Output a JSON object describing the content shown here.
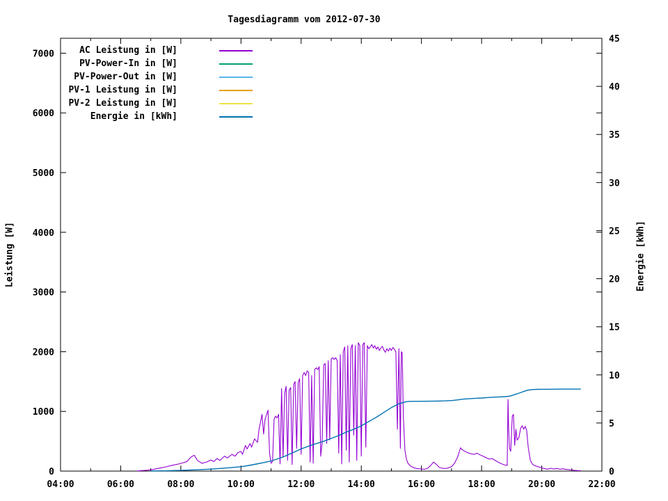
{
  "chart_data": {
    "type": "line",
    "title": "Tagesdiagramm vom 2012-07-30",
    "ylabel_left": "Leistung [W]",
    "ylabel_right": "Energie [kWh]",
    "background": "#ffffff",
    "frame_color": "#000000",
    "text_color": "#000000",
    "legend_position": "top-left-inside",
    "grid": false,
    "xlim": [
      4,
      22
    ],
    "ylim_left": [
      0,
      7250
    ],
    "ylim_right": [
      0,
      45
    ],
    "x_ticks_major": [
      {
        "t": 4,
        "label": "04:00"
      },
      {
        "t": 6,
        "label": "06:00"
      },
      {
        "t": 8,
        "label": "08:00"
      },
      {
        "t": 10,
        "label": "10:00"
      },
      {
        "t": 12,
        "label": "12:00"
      },
      {
        "t": 14,
        "label": "14:00"
      },
      {
        "t": 16,
        "label": "16:00"
      },
      {
        "t": 18,
        "label": "18:00"
      },
      {
        "t": 20,
        "label": "20:00"
      },
      {
        "t": 22,
        "label": "22:00"
      }
    ],
    "x_ticks_minor": [
      5,
      7,
      9,
      11,
      13,
      15,
      17,
      19,
      21
    ],
    "y_left_ticks": [
      0,
      1000,
      2000,
      3000,
      4000,
      5000,
      6000,
      7000
    ],
    "y_right_ticks": [
      0,
      5,
      10,
      15,
      20,
      25,
      30,
      35,
      40,
      45
    ],
    "series": [
      {
        "name": "AC Leistung in [W]",
        "color": "#9400d3",
        "axis": "left",
        "points": [
          [
            6.55,
            2
          ],
          [
            6.7,
            8
          ],
          [
            6.9,
            15
          ],
          [
            7.1,
            30
          ],
          [
            7.3,
            50
          ],
          [
            7.5,
            70
          ],
          [
            7.7,
            95
          ],
          [
            7.9,
            115
          ],
          [
            8.05,
            135
          ],
          [
            8.2,
            160
          ],
          [
            8.35,
            240
          ],
          [
            8.45,
            265
          ],
          [
            8.55,
            180
          ],
          [
            8.7,
            130
          ],
          [
            8.85,
            150
          ],
          [
            9.0,
            185
          ],
          [
            9.1,
            160
          ],
          [
            9.2,
            210
          ],
          [
            9.3,
            180
          ],
          [
            9.45,
            250
          ],
          [
            9.55,
            220
          ],
          [
            9.7,
            280
          ],
          [
            9.8,
            250
          ],
          [
            9.9,
            310
          ],
          [
            10.0,
            330
          ],
          [
            10.05,
            280
          ],
          [
            10.15,
            430
          ],
          [
            10.2,
            370
          ],
          [
            10.3,
            460
          ],
          [
            10.35,
            400
          ],
          [
            10.45,
            540
          ],
          [
            10.55,
            480
          ],
          [
            10.6,
            700
          ],
          [
            10.7,
            950
          ],
          [
            10.75,
            620
          ],
          [
            10.8,
            870
          ],
          [
            10.9,
            1020
          ],
          [
            10.95,
            300
          ],
          [
            11.0,
            130
          ],
          [
            11.05,
            160
          ],
          [
            11.1,
            870
          ],
          [
            11.15,
            920
          ],
          [
            11.2,
            890
          ],
          [
            11.25,
            950
          ],
          [
            11.3,
            120
          ],
          [
            11.35,
            1380
          ],
          [
            11.4,
            230
          ],
          [
            11.45,
            1300
          ],
          [
            11.5,
            1420
          ],
          [
            11.55,
            180
          ],
          [
            11.6,
            1350
          ],
          [
            11.65,
            1400
          ],
          [
            11.7,
            110
          ],
          [
            11.75,
            1450
          ],
          [
            11.8,
            1500
          ],
          [
            11.85,
            380
          ],
          [
            11.9,
            1480
          ],
          [
            11.95,
            1550
          ],
          [
            12.0,
            280
          ],
          [
            12.05,
            1600
          ],
          [
            12.1,
            1650
          ],
          [
            12.15,
            1600
          ],
          [
            12.2,
            1680
          ],
          [
            12.25,
            1650
          ],
          [
            12.3,
            150
          ],
          [
            12.35,
            1600
          ],
          [
            12.4,
            130
          ],
          [
            12.45,
            1700
          ],
          [
            12.5,
            1730
          ],
          [
            12.55,
            1700
          ],
          [
            12.6,
            1750
          ],
          [
            12.65,
            250
          ],
          [
            12.7,
            480
          ],
          [
            12.75,
            1780
          ],
          [
            12.8,
            1800
          ],
          [
            12.85,
            460
          ],
          [
            12.9,
            1850
          ],
          [
            12.95,
            520
          ],
          [
            13.0,
            1880
          ],
          [
            13.05,
            1900
          ],
          [
            13.1,
            1870
          ],
          [
            13.15,
            1900
          ],
          [
            13.2,
            1850
          ],
          [
            13.25,
            300
          ],
          [
            13.3,
            1950
          ],
          [
            13.35,
            120
          ],
          [
            13.4,
            2000
          ],
          [
            13.45,
            2080
          ],
          [
            13.5,
            350
          ],
          [
            13.55,
            2100
          ],
          [
            13.6,
            150
          ],
          [
            13.65,
            2050
          ],
          [
            13.7,
            2120
          ],
          [
            13.75,
            600
          ],
          [
            13.8,
            2100
          ],
          [
            13.85,
            180
          ],
          [
            13.9,
            2150
          ],
          [
            13.95,
            2100
          ],
          [
            14.0,
            250
          ],
          [
            14.05,
            2120
          ],
          [
            14.1,
            2150
          ],
          [
            14.15,
            400
          ],
          [
            14.2,
            2100
          ],
          [
            14.25,
            2050
          ],
          [
            14.3,
            2080
          ],
          [
            14.35,
            2120
          ],
          [
            14.4,
            2060
          ],
          [
            14.45,
            2100
          ],
          [
            14.5,
            2040
          ],
          [
            14.55,
            2080
          ],
          [
            14.6,
            2020
          ],
          [
            14.65,
            2060
          ],
          [
            14.7,
            2090
          ],
          [
            14.75,
            2030
          ],
          [
            14.8,
            1990
          ],
          [
            14.85,
            2050
          ],
          [
            14.9,
            2010
          ],
          [
            14.95,
            2060
          ],
          [
            15.0,
            2020
          ],
          [
            15.05,
            2070
          ],
          [
            15.1,
            2040
          ],
          [
            15.15,
            2000
          ],
          [
            15.2,
            700
          ],
          [
            15.25,
            2050
          ],
          [
            15.3,
            380
          ],
          [
            15.33,
            2000
          ],
          [
            15.36,
            1980
          ],
          [
            15.4,
            900
          ],
          [
            15.45,
            350
          ],
          [
            15.5,
            200
          ],
          [
            15.55,
            130
          ],
          [
            15.65,
            80
          ],
          [
            15.75,
            55
          ],
          [
            15.85,
            42
          ],
          [
            16.0,
            35
          ],
          [
            16.1,
            30
          ],
          [
            16.2,
            45
          ],
          [
            16.3,
            90
          ],
          [
            16.4,
            150
          ],
          [
            16.5,
            110
          ],
          [
            16.6,
            60
          ],
          [
            16.7,
            48
          ],
          [
            16.8,
            42
          ],
          [
            16.9,
            55
          ],
          [
            17.0,
            75
          ],
          [
            17.1,
            130
          ],
          [
            17.2,
            230
          ],
          [
            17.3,
            390
          ],
          [
            17.35,
            360
          ],
          [
            17.45,
            330
          ],
          [
            17.55,
            305
          ],
          [
            17.65,
            290
          ],
          [
            17.75,
            280
          ],
          [
            17.85,
            300
          ],
          [
            17.95,
            270
          ],
          [
            18.05,
            250
          ],
          [
            18.15,
            225
          ],
          [
            18.25,
            200
          ],
          [
            18.35,
            210
          ],
          [
            18.45,
            180
          ],
          [
            18.55,
            150
          ],
          [
            18.65,
            125
          ],
          [
            18.75,
            105
          ],
          [
            18.85,
            95
          ],
          [
            18.88,
            1200
          ],
          [
            18.9,
            700
          ],
          [
            18.93,
            380
          ],
          [
            18.97,
            330
          ],
          [
            19.02,
            920
          ],
          [
            19.06,
            950
          ],
          [
            19.1,
            430
          ],
          [
            19.14,
            700
          ],
          [
            19.18,
            520
          ],
          [
            19.24,
            560
          ],
          [
            19.3,
            720
          ],
          [
            19.35,
            760
          ],
          [
            19.4,
            700
          ],
          [
            19.45,
            750
          ],
          [
            19.5,
            680
          ],
          [
            19.55,
            400
          ],
          [
            19.62,
            180
          ],
          [
            19.7,
            110
          ],
          [
            19.8,
            85
          ],
          [
            19.9,
            70
          ],
          [
            20.0,
            55
          ],
          [
            20.1,
            40
          ],
          [
            20.2,
            32
          ],
          [
            20.3,
            48
          ],
          [
            20.4,
            34
          ],
          [
            20.5,
            44
          ],
          [
            20.6,
            30
          ],
          [
            20.7,
            38
          ],
          [
            20.8,
            28
          ],
          [
            20.9,
            24
          ],
          [
            21.0,
            18
          ],
          [
            21.1,
            10
          ],
          [
            21.3,
            6
          ]
        ]
      },
      {
        "name": "PV-Power-In in [W]",
        "color": "#009e73",
        "axis": "left",
        "points": []
      },
      {
        "name": "PV-Power-Out in [W]",
        "color": "#56b4e9",
        "axis": "left",
        "points": []
      },
      {
        "name": "PV-1 Leistung in [W]",
        "color": "#e69f00",
        "axis": "left",
        "points": []
      },
      {
        "name": "PV-2 Leistung in [W]",
        "color": "#f0e442",
        "axis": "left",
        "points": []
      },
      {
        "name": "Energie in [kWh]",
        "color": "#0072b2",
        "axis": "right",
        "points": [
          [
            7.0,
            0.02
          ],
          [
            7.5,
            0.03
          ],
          [
            8.0,
            0.07
          ],
          [
            8.5,
            0.13
          ],
          [
            9.0,
            0.2
          ],
          [
            9.25,
            0.26
          ],
          [
            9.5,
            0.32
          ],
          [
            9.75,
            0.38
          ],
          [
            10.0,
            0.45
          ],
          [
            10.25,
            0.58
          ],
          [
            10.5,
            0.72
          ],
          [
            10.75,
            0.88
          ],
          [
            11.0,
            1.05
          ],
          [
            11.25,
            1.3
          ],
          [
            11.5,
            1.6
          ],
          [
            11.75,
            1.95
          ],
          [
            12.0,
            2.3
          ],
          [
            12.25,
            2.6
          ],
          [
            12.5,
            2.85
          ],
          [
            12.75,
            3.1
          ],
          [
            13.0,
            3.4
          ],
          [
            13.25,
            3.7
          ],
          [
            13.5,
            4.05
          ],
          [
            13.75,
            4.35
          ],
          [
            14.0,
            4.7
          ],
          [
            14.25,
            5.15
          ],
          [
            14.5,
            5.6
          ],
          [
            14.75,
            6.1
          ],
          [
            15.0,
            6.6
          ],
          [
            15.25,
            7.0
          ],
          [
            15.5,
            7.22
          ],
          [
            15.6,
            7.25
          ],
          [
            16.0,
            7.26
          ],
          [
            16.5,
            7.28
          ],
          [
            16.8,
            7.3
          ],
          [
            17.0,
            7.33
          ],
          [
            17.2,
            7.4
          ],
          [
            17.4,
            7.48
          ],
          [
            17.6,
            7.53
          ],
          [
            17.8,
            7.57
          ],
          [
            18.0,
            7.6
          ],
          [
            18.2,
            7.65
          ],
          [
            18.4,
            7.68
          ],
          [
            18.6,
            7.71
          ],
          [
            18.8,
            7.74
          ],
          [
            18.95,
            7.8
          ],
          [
            19.1,
            7.95
          ],
          [
            19.25,
            8.1
          ],
          [
            19.4,
            8.28
          ],
          [
            19.55,
            8.42
          ],
          [
            19.7,
            8.48
          ],
          [
            19.85,
            8.5
          ],
          [
            20.2,
            8.51
          ],
          [
            20.6,
            8.52
          ],
          [
            21.0,
            8.52
          ],
          [
            21.3,
            8.52
          ]
        ]
      }
    ]
  }
}
